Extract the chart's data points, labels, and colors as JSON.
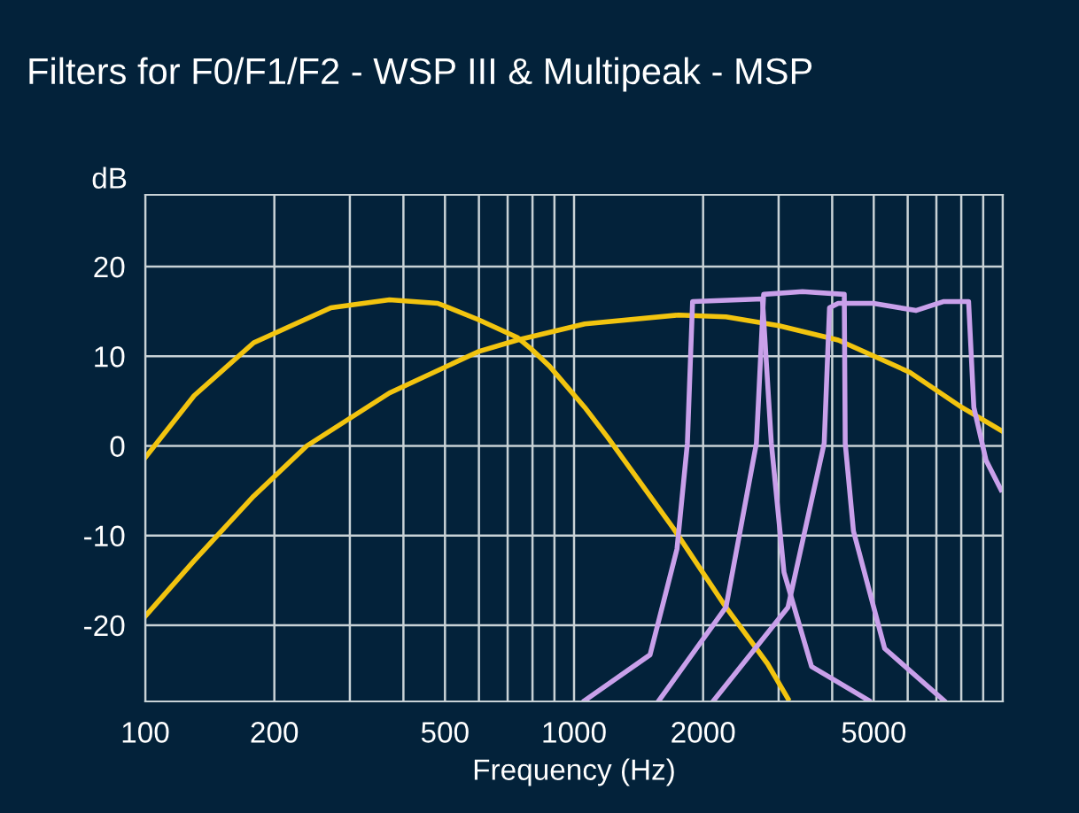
{
  "chart_data": {
    "type": "line",
    "title": "Filters for F0/F1/F2 - WSP III & Multipeak - MSP",
    "xlabel": "Frequency (Hz)",
    "ylabel": "dB",
    "log": "x",
    "grid": true,
    "marker": "none",
    "line_style": "solid",
    "xlim": [
      100,
      10000
    ],
    "ylim": [
      -28.5,
      28
    ],
    "xticks": [
      100,
      200,
      {
        "value": 300,
        "label": null
      },
      {
        "value": 400,
        "label": null
      },
      500,
      {
        "value": 600,
        "label": null
      },
      {
        "value": 700,
        "label": null
      },
      {
        "value": 800,
        "label": null
      },
      {
        "value": 900,
        "label": null
      },
      1000,
      2000,
      {
        "value": 3000,
        "label": null
      },
      {
        "value": 4000,
        "label": null
      },
      5000,
      {
        "value": 6000,
        "label": null
      },
      {
        "value": 7000,
        "label": null
      },
      {
        "value": 8000,
        "label": null
      },
      {
        "value": 9000,
        "label": null
      },
      {
        "value": 10000,
        "label": null
      }
    ],
    "yticks": [
      -20,
      -10,
      0,
      10,
      20
    ],
    "series": [
      {
        "color": "#f2c40f",
        "x": [
          100,
          130,
          179,
          271,
          371,
          481,
          597,
          737,
          795,
          876,
          1059,
          1196,
          1705,
          2261,
          2827,
          3155
        ],
        "values": [
          -1.3,
          5.6,
          11.5,
          15.4,
          16.3,
          15.9,
          14.1,
          12.1,
          10.8,
          8.9,
          4.3,
          1.0,
          -9.2,
          -18,
          -24.3,
          -28.2
        ]
      },
      {
        "color": "#f2c40f",
        "x": [
          100,
          130,
          179,
          238,
          371,
          597,
          737,
          1059,
          1754,
          2261,
          3003,
          4132,
          6073,
          8022,
          10000
        ],
        "values": [
          -19,
          -12.8,
          -5.6,
          0,
          5.9,
          10.5,
          11.8,
          13.6,
          14.6,
          14.4,
          13.4,
          11.8,
          8.2,
          4.3,
          1.6
        ]
      },
      {
        "color": "#c9a0ea",
        "x": [
          1059,
          1504,
          1738,
          1838,
          1890,
          2750,
          2885,
          3088,
          3580,
          4870
        ],
        "values": [
          -28.4,
          -23.3,
          -11.5,
          0.3,
          16.1,
          16.4,
          0.3,
          -14.1,
          -24.6,
          -28.4
        ]
      },
      {
        "color": "#c9a0ea",
        "x": [
          1578,
          2261,
          2663,
          2768,
          3410,
          4268,
          4290,
          4484,
          5302,
          7288
        ],
        "values": [
          -28.4,
          -18,
          0.3,
          16.9,
          17.2,
          16.9,
          0.3,
          -9.5,
          -22.6,
          -28.4
        ]
      },
      {
        "color": "#c9a0ea",
        "x": [
          2117,
          3155,
          3832,
          3943,
          4132,
          4986,
          6270,
          7288,
          8321,
          8559,
          9138,
          9905
        ],
        "values": [
          -28.4,
          -18,
          0.3,
          15.4,
          15.9,
          15.9,
          15.1,
          16.1,
          16.1,
          4.3,
          -1.6,
          -4.9
        ]
      }
    ]
  }
}
